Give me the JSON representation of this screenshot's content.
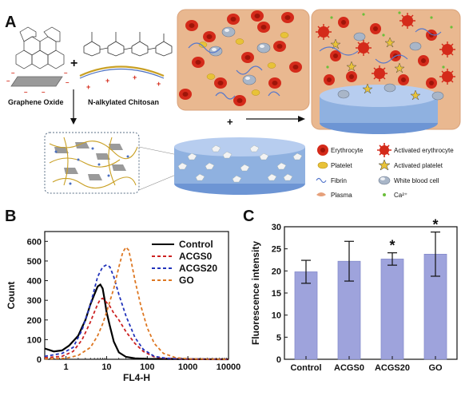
{
  "panel_a": {
    "letter": "A",
    "graphene_oxide_label": "Graphene Oxide",
    "chitosan_label": "N-alkylated Chitosan",
    "plus_top": "+",
    "plus_mid": "+",
    "legend": {
      "erythrocyte": "Erythrocyte",
      "activated_erythrocyte": "Activated erythrocyte",
      "platelet": "Platelet",
      "activated_platelet": "Activated platelet",
      "fibrin": "Fibrin",
      "white_blood_cell": "White blood cell",
      "plasma": "Plasma",
      "calcium": "Ca²⁺"
    },
    "colors": {
      "plasma_bg": "#e9b890",
      "erythrocyte": "#d42a1a",
      "platelet": "#e8c238",
      "wbc": "#a9b6c8",
      "fibrin": "#5577cc",
      "sponge": "#8fb1e0",
      "calcium": "#6bbf3a"
    }
  },
  "chart_data": [
    {
      "panel": "B",
      "type": "line",
      "xlabel": "FL4-H",
      "ylabel": "Count",
      "x_scale": "log",
      "xlim": [
        0.3,
        10000
      ],
      "ylim": [
        0,
        650
      ],
      "x_ticks": [
        1,
        10,
        100,
        1000,
        10000
      ],
      "x_tick_labels": [
        "1",
        "10",
        "100",
        "1000",
        "10000"
      ],
      "y_ticks": [
        0,
        100,
        200,
        300,
        400,
        500,
        600
      ],
      "y_tick_labels": [
        "0",
        "100",
        "200",
        "300",
        "400",
        "500",
        "600"
      ],
      "legend_position": "top-right",
      "series": [
        {
          "name": "Control",
          "color": "#000000",
          "dash": "solid",
          "points": [
            [
              0.3,
              55
            ],
            [
              0.5,
              40
            ],
            [
              0.8,
              45
            ],
            [
              1.2,
              70
            ],
            [
              2,
              120
            ],
            [
              3,
              200
            ],
            [
              4,
              280
            ],
            [
              5,
              330
            ],
            [
              6,
              370
            ],
            [
              7,
              380
            ],
            [
              8,
              360
            ],
            [
              9,
              300
            ],
            [
              10,
              240
            ],
            [
              12,
              170
            ],
            [
              15,
              90
            ],
            [
              20,
              35
            ],
            [
              30,
              12
            ],
            [
              50,
              5
            ],
            [
              100,
              2
            ],
            [
              10000,
              0
            ]
          ]
        },
        {
          "name": "ACGS0",
          "color": "#cc2222",
          "dash": "dashed",
          "points": [
            [
              0.3,
              8
            ],
            [
              0.8,
              15
            ],
            [
              1.5,
              40
            ],
            [
              2.5,
              100
            ],
            [
              4,
              190
            ],
            [
              5,
              240
            ],
            [
              6,
              280
            ],
            [
              7,
              305
            ],
            [
              8,
              310
            ],
            [
              9,
              300
            ],
            [
              12,
              270
            ],
            [
              15,
              235
            ],
            [
              20,
              200
            ],
            [
              30,
              140
            ],
            [
              50,
              80
            ],
            [
              80,
              40
            ],
            [
              150,
              12
            ],
            [
              300,
              4
            ],
            [
              1000,
              1
            ],
            [
              10000,
              0
            ]
          ]
        },
        {
          "name": "ACGS20",
          "color": "#2233bb",
          "dash": "dashed",
          "points": [
            [
              0.3,
              15
            ],
            [
              0.8,
              30
            ],
            [
              1.5,
              60
            ],
            [
              2.5,
              150
            ],
            [
              4,
              280
            ],
            [
              6,
              420
            ],
            [
              8,
              470
            ],
            [
              10,
              480
            ],
            [
              12,
              470
            ],
            [
              15,
              420
            ],
            [
              20,
              330
            ],
            [
              30,
              220
            ],
            [
              50,
              110
            ],
            [
              80,
              50
            ],
            [
              150,
              15
            ],
            [
              300,
              5
            ],
            [
              1000,
              2
            ],
            [
              10000,
              0
            ]
          ]
        },
        {
          "name": "GO",
          "color": "#dd7722",
          "dash": "dashed",
          "points": [
            [
              0.3,
              2
            ],
            [
              1,
              5
            ],
            [
              2,
              20
            ],
            [
              4,
              60
            ],
            [
              6,
              120
            ],
            [
              8,
              180
            ],
            [
              10,
              240
            ],
            [
              15,
              360
            ],
            [
              20,
              470
            ],
            [
              25,
              545
            ],
            [
              30,
              570
            ],
            [
              35,
              555
            ],
            [
              40,
              500
            ],
            [
              50,
              400
            ],
            [
              70,
              270
            ],
            [
              100,
              160
            ],
            [
              150,
              80
            ],
            [
              250,
              30
            ],
            [
              500,
              8
            ],
            [
              1000,
              2
            ],
            [
              10000,
              0
            ]
          ]
        }
      ]
    },
    {
      "panel": "C",
      "type": "bar",
      "categories": [
        "Control",
        "ACGS0",
        "ACGS20",
        "GO"
      ],
      "values": [
        19.8,
        22.2,
        22.7,
        23.8
      ],
      "errors": [
        2.6,
        4.5,
        1.4,
        5.0
      ],
      "significance": [
        "",
        "",
        "*",
        "*"
      ],
      "ylabel": "Fluorescence intensity",
      "xlabel": "",
      "ylim": [
        0,
        30
      ],
      "y_ticks": [
        0,
        5,
        10,
        15,
        20,
        25,
        30
      ],
      "y_tick_labels": [
        "0",
        "5",
        "10",
        "15",
        "20",
        "25",
        "30"
      ],
      "bar_color": "#9ea3dc"
    }
  ],
  "panel_letters": {
    "b": "B",
    "c": "C"
  }
}
